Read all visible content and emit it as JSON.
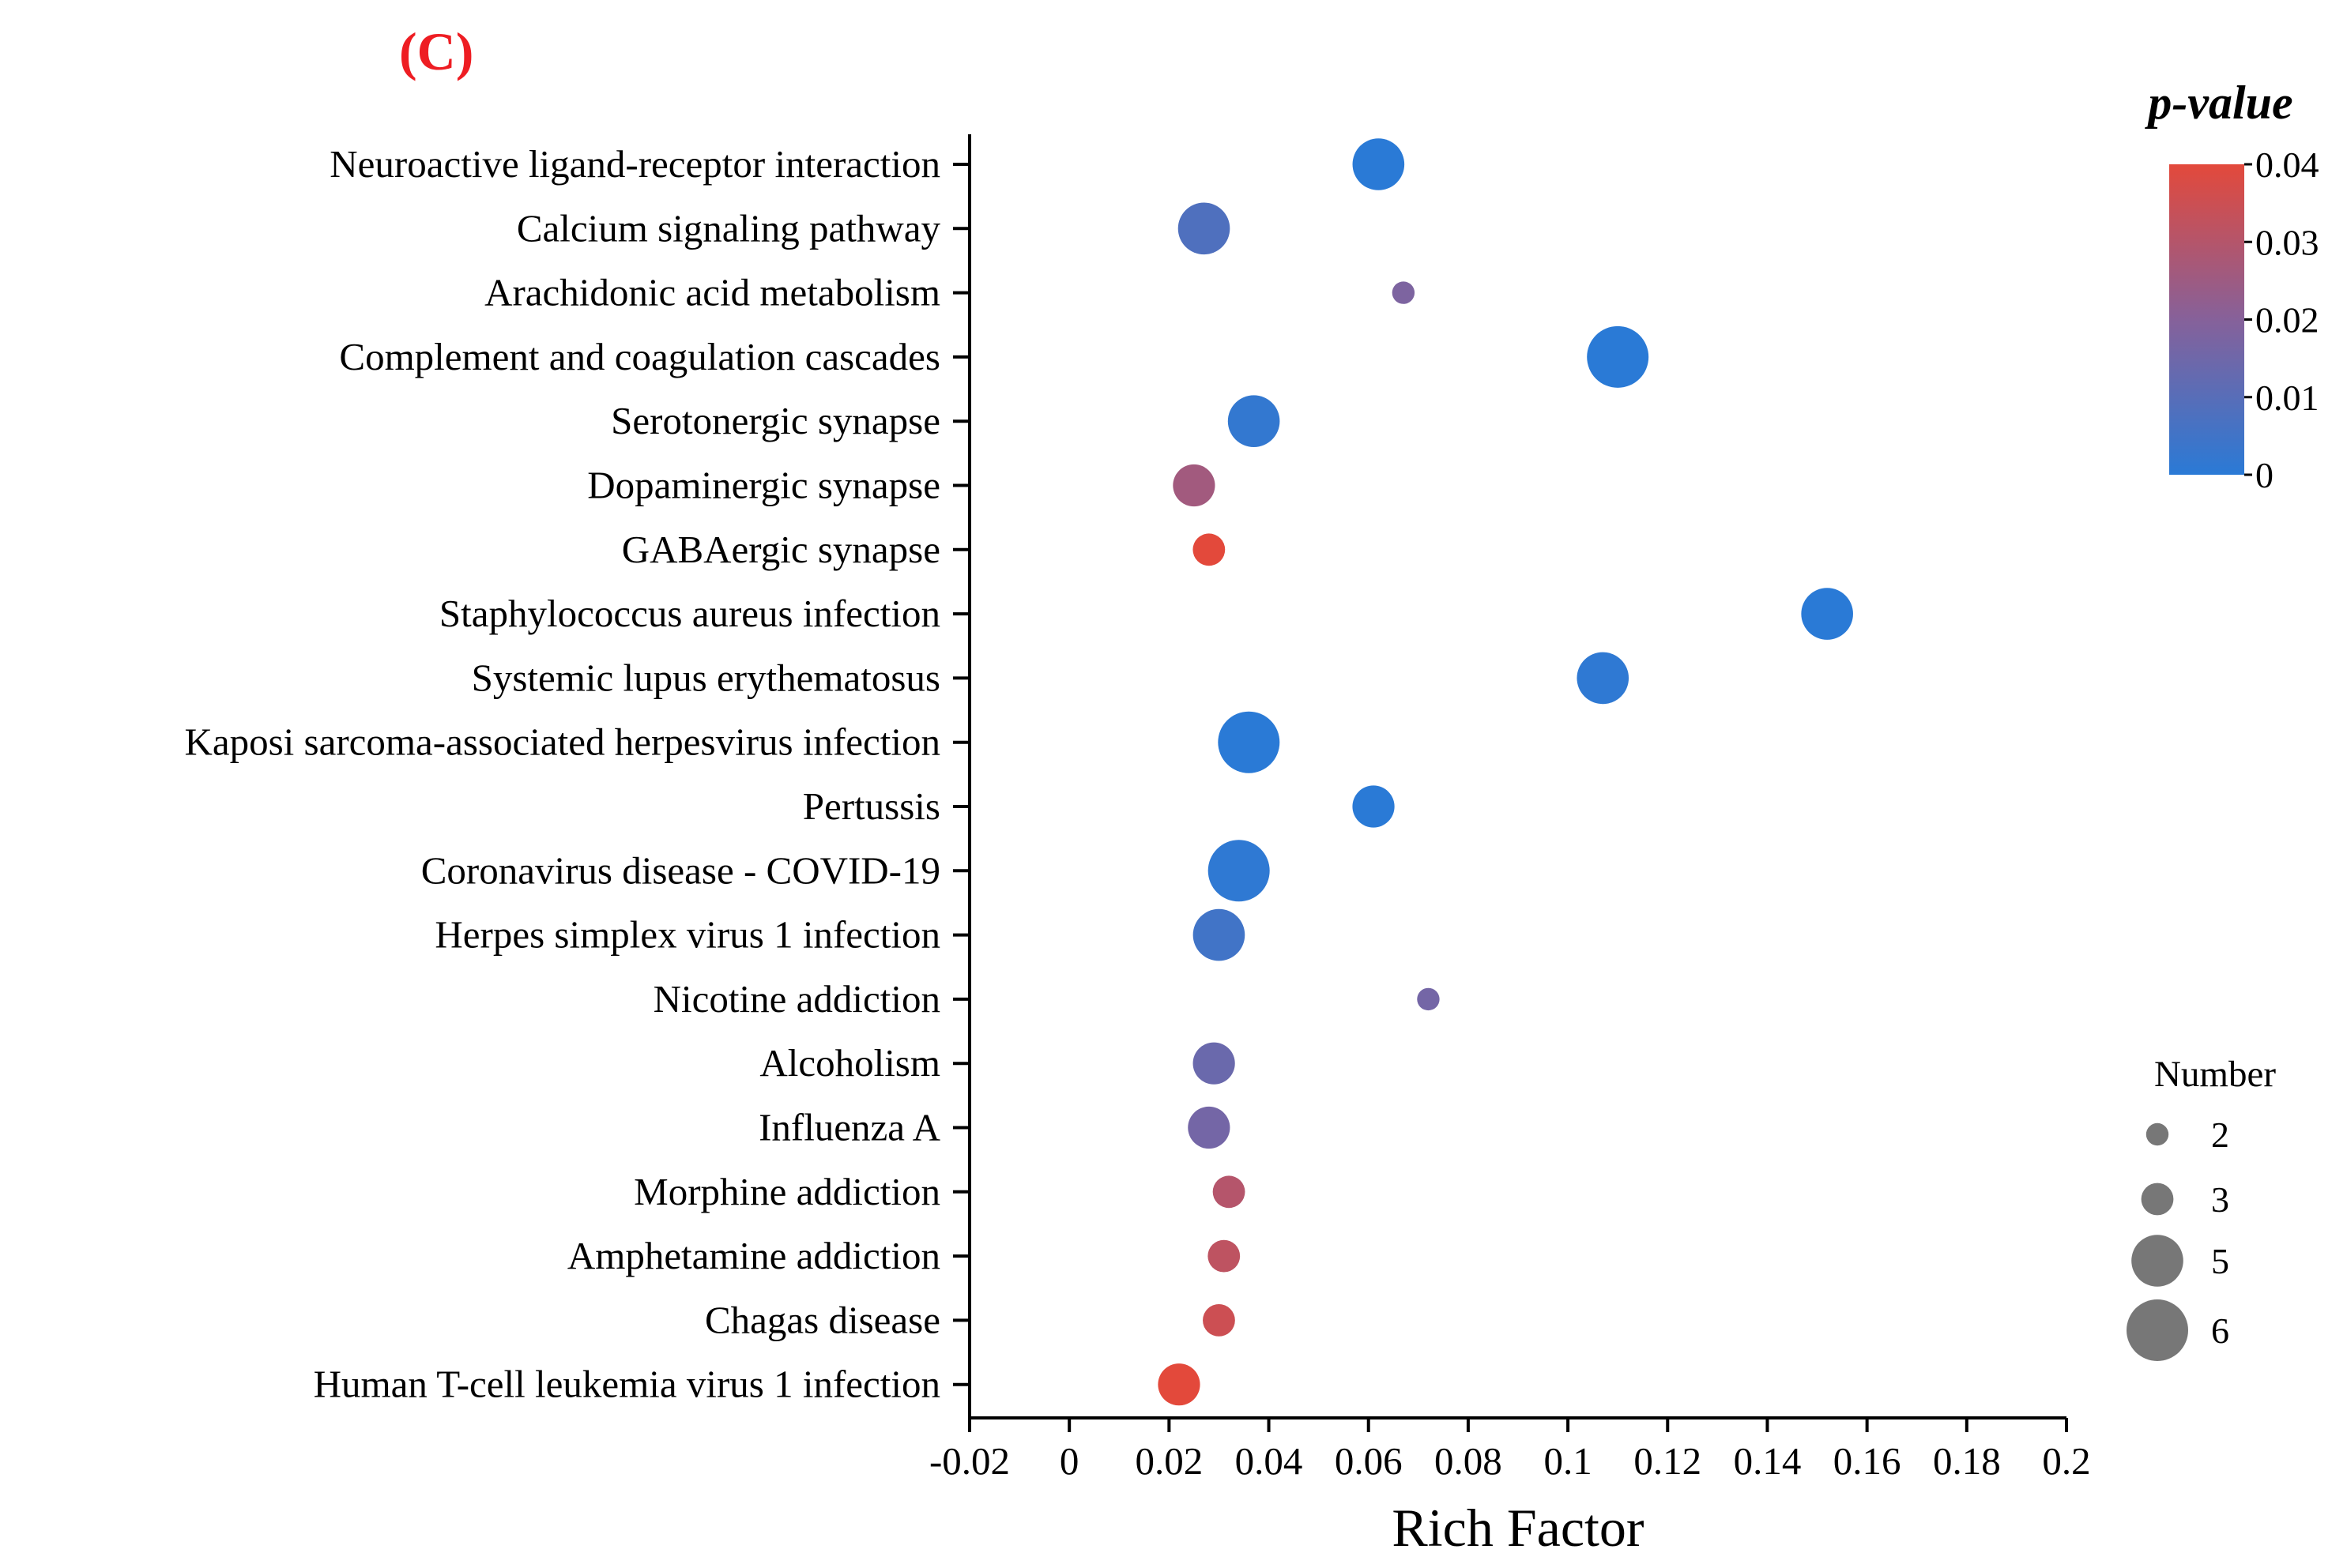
{
  "panel_label": "(C)",
  "chart_data": {
    "type": "scatter",
    "subtype": "bubble",
    "xlabel": "Rich Factor",
    "ylabel": "",
    "xlim": [
      -0.02,
      0.2
    ],
    "xticks": [
      -0.02,
      0,
      0.02,
      0.04,
      0.06,
      0.08,
      0.1,
      0.12,
      0.14,
      0.16,
      0.18,
      0.2
    ],
    "xtick_labels": [
      "-0.02",
      "0",
      "0.02",
      "0.04",
      "0.06",
      "0.08",
      "0.1",
      "0.12",
      "0.14",
      "0.16",
      "0.18",
      "0.2"
    ],
    "grid": false,
    "categories": [
      "Neuroactive ligand-receptor interaction",
      "Calcium signaling pathway",
      "Arachidonic acid metabolism",
      "Complement and coagulation cascades",
      "Serotonergic synapse",
      "Dopaminergic synapse",
      "GABAergic synapse",
      "Staphylococcus aureus infection",
      "Systemic lupus erythematosus",
      "Kaposi sarcoma-associated herpesvirus infection",
      "Pertussis",
      "Coronavirus disease - COVID-19",
      "Herpes simplex virus 1 infection",
      "Nicotine addiction",
      "Alcoholism",
      "Influenza A",
      "Morphine addiction",
      "Amphetamine addiction",
      "Chagas disease",
      "Human T-cell leukemia virus 1 infection"
    ],
    "rich_factor": [
      0.062,
      0.027,
      0.067,
      0.11,
      0.037,
      0.025,
      0.028,
      0.152,
      0.107,
      0.036,
      0.061,
      0.034,
      0.03,
      0.072,
      0.029,
      0.028,
      0.032,
      0.031,
      0.03,
      0.022
    ],
    "number": [
      5,
      5,
      2,
      6,
      5,
      4,
      3,
      5,
      5,
      6,
      4,
      6,
      5,
      2,
      4,
      4,
      3,
      3,
      3,
      4
    ],
    "p_value": [
      0.0,
      0.008,
      0.018,
      0.0,
      0.002,
      0.026,
      0.04,
      0.0,
      0.001,
      0.0,
      0.0,
      0.001,
      0.005,
      0.016,
      0.014,
      0.016,
      0.03,
      0.032,
      0.035,
      0.04
    ],
    "color_scale": {
      "title": "p-value",
      "min": 0,
      "max": 0.04,
      "ticks": [
        0,
        0.01,
        0.02,
        0.03,
        0.04
      ],
      "tick_labels": [
        "0",
        "0.01",
        "0.02",
        "0.03",
        "0.04"
      ],
      "low_color": "#2a7ad6",
      "high_color": "#e3493b"
    },
    "size_legend": {
      "title": "Number",
      "values": [
        2,
        3,
        5,
        6
      ],
      "labels": [
        "2",
        "3",
        "5",
        "6"
      ],
      "color": "#777777"
    },
    "legend_position": "right"
  }
}
